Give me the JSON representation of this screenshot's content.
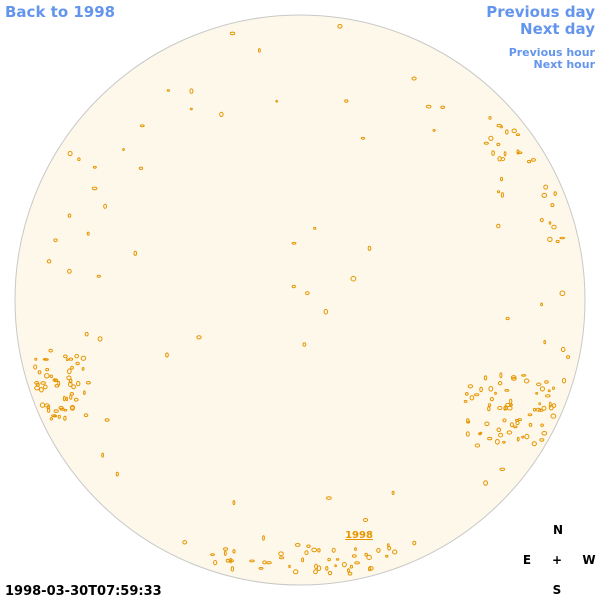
{
  "nav": {
    "back": "Back to 1998",
    "previous_day": "Previous day",
    "next_day": "Next day",
    "previous_hour": "Previous hour",
    "next_hour": "Next hour"
  },
  "timestamp": "1998-03-30T07:59:33",
  "disk_label": "1998",
  "compass": {
    "north": "N",
    "east": "E",
    "center": "+",
    "west": "W",
    "south": "S"
  }
}
